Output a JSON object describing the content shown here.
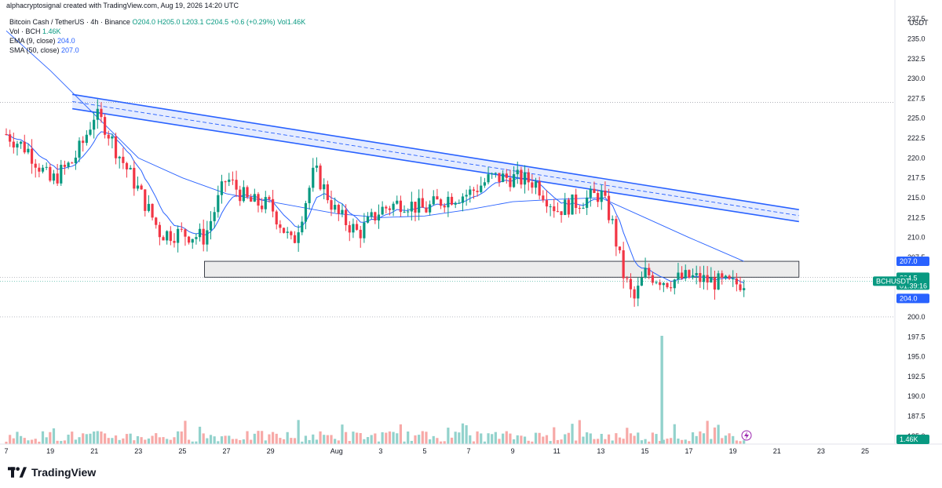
{
  "header": {
    "attribution": "alphacryptosignal created with TradingView.com, Aug 19, 2026 14:20 UTC"
  },
  "legend": {
    "symbol_line": "Bitcoin Cash / TetherUS · 4h · Binance",
    "ohlc": {
      "o": "O204.0",
      "h": "H205.0",
      "l": "L203.1",
      "c": "C204.5",
      "chg": "+0.6 (+0.29%)",
      "vol": "Vol1.46K"
    },
    "vol_line": {
      "label": "Vol · BCH",
      "value": "1.46K"
    },
    "ema_line": {
      "label": "EMA (9, close)",
      "value": "204.0"
    },
    "sma_line": {
      "label": "SMA (50, close)",
      "value": "207.0"
    }
  },
  "price_axis": {
    "currency": "USDT",
    "ticks": [
      "237.5",
      "235.0",
      "232.5",
      "230.0",
      "227.5",
      "225.0",
      "222.5",
      "220.0",
      "217.5",
      "215.0",
      "212.5",
      "210.0",
      "207.5",
      "205.0",
      "202.5",
      "200.0",
      "197.5",
      "195.0",
      "192.5",
      "190.0",
      "187.5",
      "185.0"
    ]
  },
  "price_tags": {
    "sma": "207.0",
    "symbol": "BCHUSDT",
    "last_price": "204.5",
    "countdown": "01:39:16",
    "ema": "204.0",
    "volume": "1.46K"
  },
  "time_axis": {
    "labels": [
      "7",
      "19",
      "21",
      "23",
      "25",
      "27",
      "29",
      "Aug",
      "3",
      "5",
      "7",
      "9",
      "11",
      "13",
      "15",
      "17",
      "19",
      "21",
      "23",
      "25"
    ]
  },
  "branding": {
    "name": "TradingView"
  },
  "colors": {
    "up": "#089981",
    "down": "#f23645",
    "ema": "#2962ff",
    "sma": "#2962ff",
    "channel": "#2962ff",
    "vol_up": "#92d2cc",
    "vol_down": "#f7a9a7"
  },
  "chart_data": {
    "type": "candlestick",
    "symbol": "BCHUSDT",
    "timeframe": "4h",
    "ylim": [
      184,
      238.5
    ],
    "y_ticks": [
      237.5,
      235.0,
      232.5,
      230.0,
      227.5,
      225.0,
      222.5,
      220.0,
      217.5,
      215.0,
      212.5,
      210.0,
      207.5,
      205.0,
      202.5,
      200.0,
      197.5,
      195.0,
      192.5,
      190.0,
      187.5,
      185.0
    ],
    "reference_lines": [
      227.0,
      205.0,
      200.0
    ],
    "support_zone": {
      "x_start": "Jul 26",
      "x_end": "Aug 22",
      "top": 207.0,
      "bottom": 205.0
    },
    "descending_channel": {
      "upper": [
        [
          "Jul 20",
          228.0
        ],
        [
          "Aug 22",
          213.5
        ]
      ],
      "lower": [
        [
          "Jul 20",
          226.2
        ],
        [
          "Aug 22",
          212.0
        ]
      ]
    },
    "close_path": [
      [
        "Jul 17",
        223
      ],
      [
        "Jul 18",
        221
      ],
      [
        "Jul 19",
        217
      ],
      [
        "Jul 20",
        219.5
      ],
      [
        "Jul 20.5",
        222
      ],
      [
        "Jul 21",
        225.5
      ],
      [
        "Jul 21.5",
        224
      ],
      [
        "Jul 22",
        221
      ],
      [
        "Jul 23",
        216
      ],
      [
        "Jul 24",
        210.5
      ],
      [
        "Jul 25",
        210.5
      ],
      [
        "Jul 26",
        210
      ],
      [
        "Jul 27",
        217.5
      ],
      [
        "Jul 28",
        214.5
      ],
      [
        "Jul 29",
        214
      ],
      [
        "Jul 30",
        209
      ],
      [
        "Jul 31",
        218.5
      ],
      [
        "Aug 1",
        213
      ],
      [
        "Aug 2",
        210.5
      ],
      [
        "Aug 3",
        213.5
      ],
      [
        "Aug 4",
        214.5
      ],
      [
        "Aug 5",
        213.5
      ],
      [
        "Aug 6",
        215
      ],
      [
        "Aug 7",
        215.5
      ],
      [
        "Aug 8",
        217.5
      ],
      [
        "Aug 9",
        217.5
      ],
      [
        "Aug 10",
        217
      ],
      [
        "Aug 11",
        213.5
      ],
      [
        "Aug 12",
        214.5
      ],
      [
        "Aug 13",
        215.5
      ],
      [
        "Aug 13.5",
        212
      ],
      [
        "Aug 14",
        205.5
      ],
      [
        "Aug 14.5",
        202
      ],
      [
        "Aug 15",
        205.5
      ],
      [
        "Aug 16",
        204.5
      ],
      [
        "Aug 17",
        205
      ],
      [
        "Aug 18",
        204.5
      ],
      [
        "Aug 19",
        204.0
      ],
      [
        "Aug 19.5",
        204.5
      ]
    ],
    "series": [
      {
        "name": "EMA (9, close)",
        "last": 204.0
      },
      {
        "name": "SMA (50, close)",
        "last": 207.0,
        "values": [
          [
            "Jul 17",
            236
          ],
          [
            "Jul 19",
            231
          ],
          [
            "Jul 21",
            225.5
          ],
          [
            "Jul 23",
            220
          ],
          [
            "Jul 25",
            217.5
          ],
          [
            "Jul 27",
            215.5
          ],
          [
            "Jul 29",
            214.5
          ],
          [
            "Aug 1",
            213
          ],
          [
            "Aug 3",
            212.5
          ],
          [
            "Aug 5",
            212.7
          ],
          [
            "Aug 7",
            213.5
          ],
          [
            "Aug 9",
            214.5
          ],
          [
            "Aug 11",
            214.8
          ],
          [
            "Aug 13",
            215
          ],
          [
            "Aug 15",
            212.5
          ],
          [
            "Aug 17",
            210
          ],
          [
            "Aug 19.5",
            207.0
          ]
        ]
      }
    ],
    "volume": {
      "last": "1.46K",
      "spike_date": "Aug 15",
      "unit": "BCH"
    }
  }
}
